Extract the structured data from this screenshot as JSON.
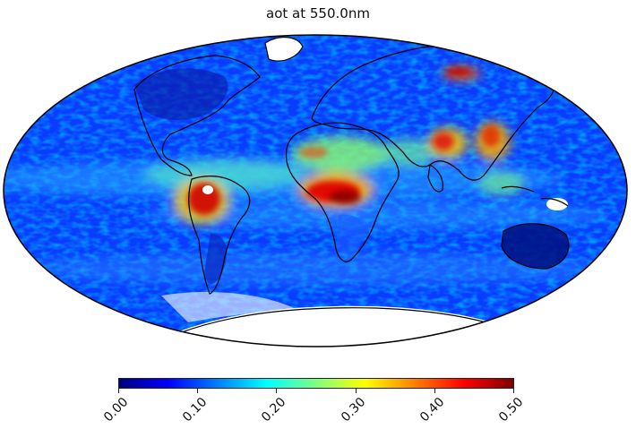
{
  "map": {
    "title": "aot at 550.0nm",
    "projection": "Mollweide (global)",
    "field": "aerosol optical thickness",
    "background_level": 0.08,
    "hotspots": [
      {
        "region": "Central Africa (Congo basin / southern Sahel)",
        "level": 0.5
      },
      {
        "region": "Amazon basin",
        "level": 0.5
      },
      {
        "region": "Northern India / Indo-Gangetic plain",
        "level": 0.45
      },
      {
        "region": "Eastern China",
        "level": 0.45
      },
      {
        "region": "Northeast Asia (Siberia)",
        "level": 0.45
      },
      {
        "region": "Sahara / Sahel dust belt",
        "level": 0.3
      },
      {
        "region": "Tropical Atlantic dust plume",
        "level": 0.22
      },
      {
        "region": "Southeast Asia / Indonesia",
        "level": 0.3
      }
    ],
    "missing_data_regions": [
      "Antarctica",
      "Greenland",
      "Maritime continent patches"
    ]
  },
  "colorbar": {
    "colormap": "jet",
    "min": 0.0,
    "max": 0.5,
    "ticks": [
      "0.00",
      "0.10",
      "0.20",
      "0.30",
      "0.40",
      "0.50"
    ],
    "colors": [
      "#00007f",
      "#0000ff",
      "#007fff",
      "#00ffff",
      "#7fff7f",
      "#ffff00",
      "#ff7f00",
      "#ff0000",
      "#7f0000"
    ]
  }
}
